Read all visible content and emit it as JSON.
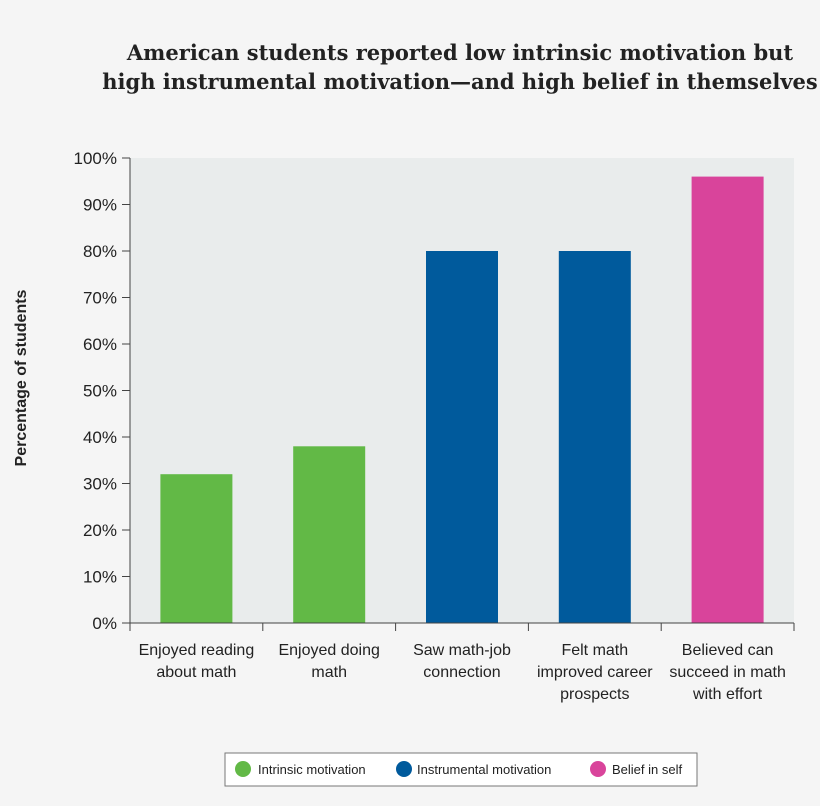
{
  "chart_data": {
    "type": "bar",
    "title": [
      "American students reported low intrinsic motivation but",
      "high instrumental motivation—and high belief in themselves"
    ],
    "xlabel": "",
    "ylabel": "Percentage of students",
    "ylim": [
      0,
      100
    ],
    "yticks": [
      0,
      10,
      20,
      30,
      40,
      50,
      60,
      70,
      80,
      90,
      100
    ],
    "ytick_labels": [
      "0%",
      "10%",
      "20%",
      "30%",
      "40%",
      "50%",
      "60%",
      "70%",
      "80%",
      "90%",
      "100%"
    ],
    "categories": [
      [
        "Enjoyed reading",
        "about math"
      ],
      [
        "Enjoyed doing",
        "math"
      ],
      [
        "Saw math-job",
        "connection"
      ],
      [
        "Felt math",
        "improved career",
        "prospects"
      ],
      [
        "Believed can",
        "succeed in math",
        "with effort"
      ]
    ],
    "values": [
      32,
      38,
      80,
      80,
      96
    ],
    "bar_groups": [
      "Intrinsic motivation",
      "Intrinsic motivation",
      "Instrumental motivation",
      "Instrumental motivation",
      "Belief in self"
    ],
    "legend": [
      {
        "label": "Intrinsic motivation",
        "color": "#62b946"
      },
      {
        "label": "Instrumental motivation",
        "color": "#005a9c"
      },
      {
        "label": "Belief in self",
        "color": "#d9449b"
      }
    ],
    "grid": false,
    "legend_position": "bottom-center"
  },
  "colors": {
    "plot_background": "#e9ecec",
    "page_background": "#f5f5f5"
  }
}
